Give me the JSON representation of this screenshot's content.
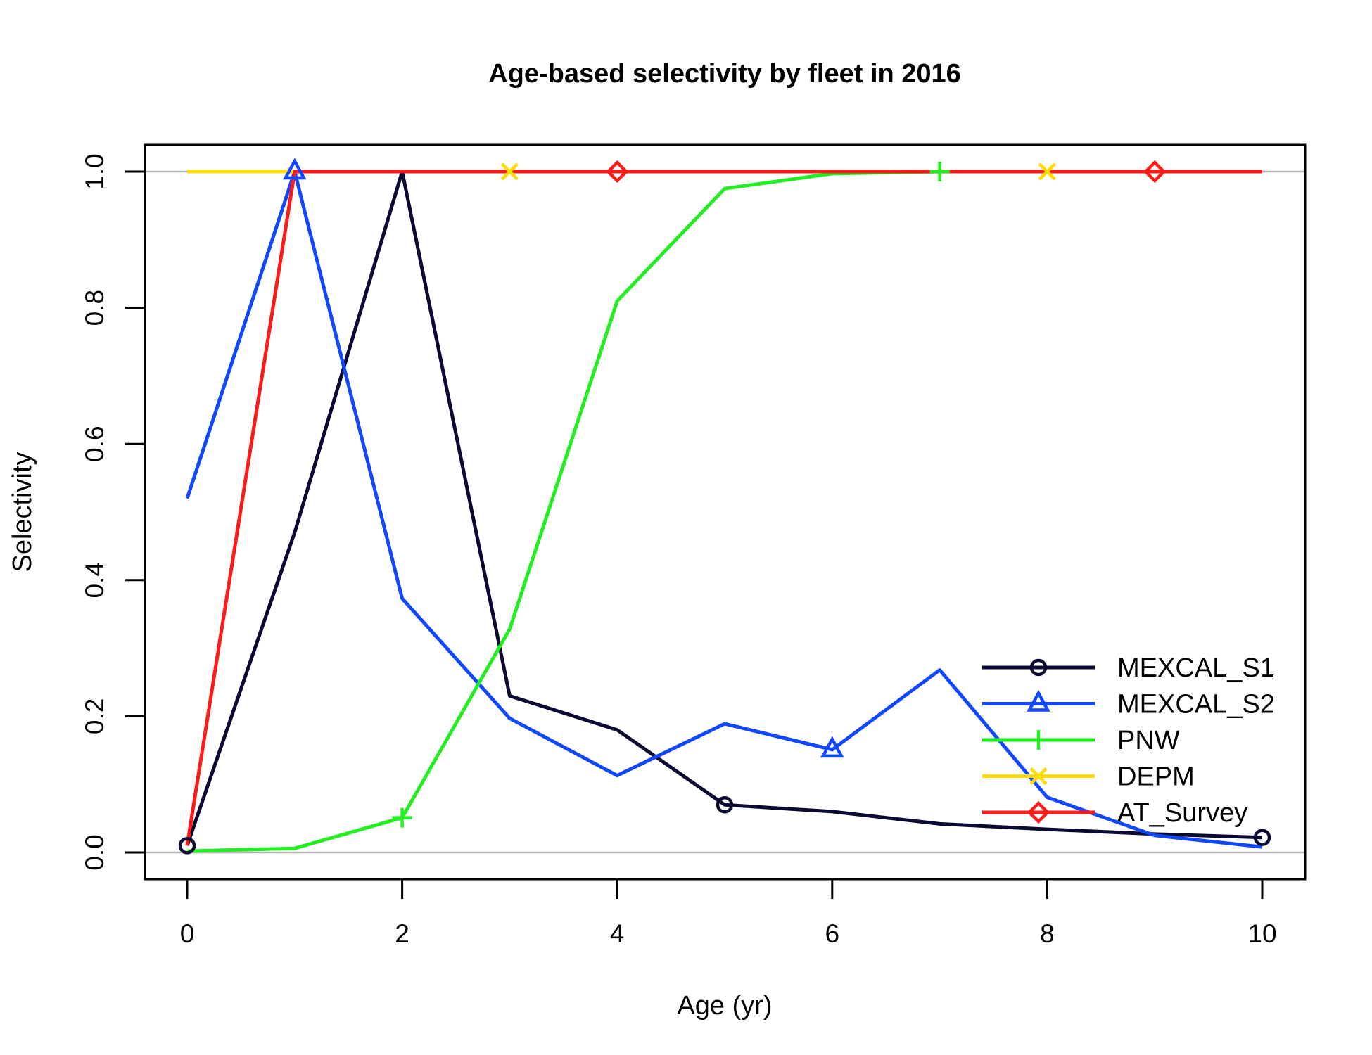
{
  "chart_data": {
    "type": "line",
    "title": "Age-based selectivity by fleet in 2016",
    "xlabel": "Age (yr)",
    "ylabel": "Selectivity",
    "xlim": [
      0,
      10
    ],
    "ylim": [
      0,
      1
    ],
    "xticks": [
      "0",
      "2",
      "4",
      "6",
      "8",
      "10"
    ],
    "yticks": [
      "0.0",
      "0.2",
      "0.4",
      "0.6",
      "0.8",
      "1.0"
    ],
    "x": [
      0,
      1,
      2,
      3,
      4,
      5,
      6,
      7,
      8,
      9,
      10
    ],
    "reference_lines": [
      0,
      1
    ],
    "legend_position": "bottom-right",
    "series": [
      {
        "name": "MEXCAL_S1",
        "color": "#0a0a33",
        "marker": "circle",
        "values": [
          0.01,
          0.47,
          1.0,
          0.23,
          0.18,
          0.07,
          0.06,
          0.042,
          0.034,
          0.027,
          0.022
        ],
        "marker_x": [
          0,
          5,
          10
        ]
      },
      {
        "name": "MEXCAL_S2",
        "color": "#1147ff",
        "marker": "triangle",
        "values": [
          0.52,
          1.0,
          0.373,
          0.197,
          0.113,
          0.189,
          0.151,
          0.268,
          0.081,
          0.025,
          0.008
        ],
        "marker_x": [
          1,
          6
        ]
      },
      {
        "name": "PNW",
        "color": "#22ee22",
        "marker": "plus",
        "values": [
          0.002,
          0.006,
          0.051,
          0.328,
          0.81,
          0.975,
          0.997,
          1.0,
          1.0,
          1.0,
          1.0
        ],
        "marker_x": [
          2,
          7
        ]
      },
      {
        "name": "DEPM",
        "color": "#ffdd00",
        "marker": "cross",
        "values": [
          1.0,
          1.0,
          1.0,
          1.0,
          1.0,
          1.0,
          1.0,
          1.0,
          1.0,
          1.0,
          1.0
        ],
        "marker_x": [
          3,
          8
        ]
      },
      {
        "name": "AT_Survey",
        "color": "#ff1a1a",
        "marker": "diamond",
        "values": [
          0.01,
          1.0,
          1.0,
          1.0,
          1.0,
          1.0,
          1.0,
          1.0,
          1.0,
          1.0,
          1.0
        ],
        "marker_x": [
          4,
          9
        ]
      }
    ]
  }
}
